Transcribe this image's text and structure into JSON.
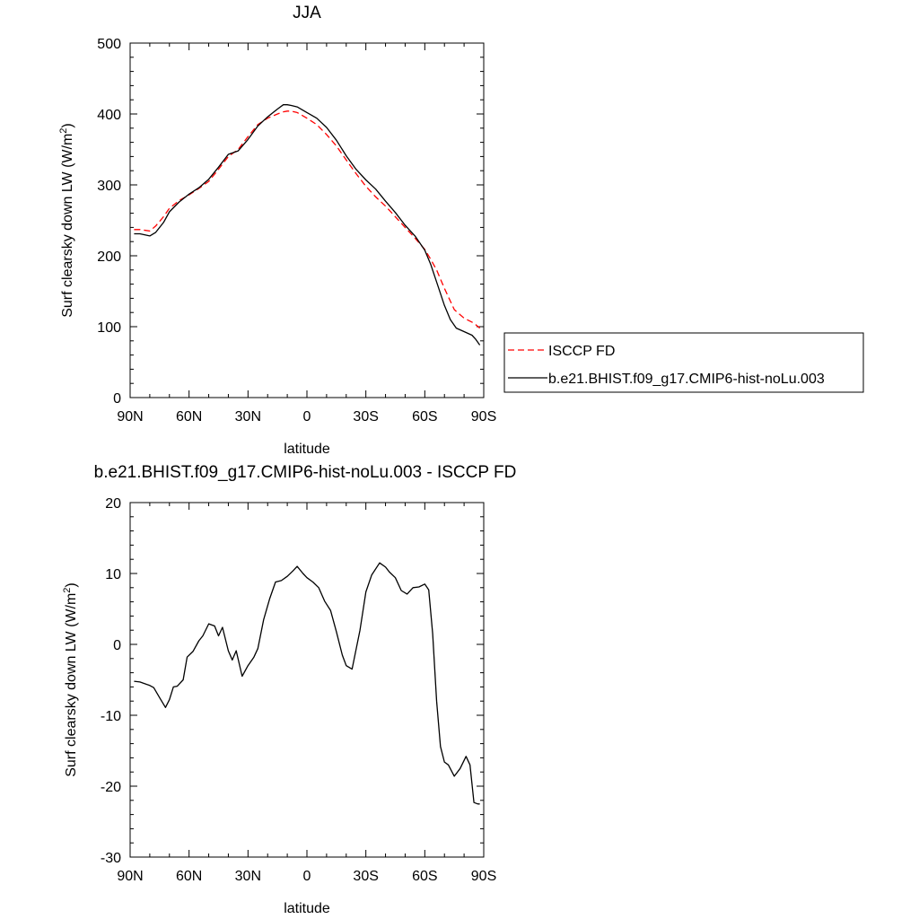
{
  "chart_data": [
    {
      "type": "line",
      "title": "JJA",
      "xlabel": "latitude",
      "ylabel": "Surf clearsky down LW (W/m",
      "ylabel_sup": "2",
      "ylabel_end": ")",
      "xlim": [
        90,
        -90
      ],
      "ylim": [
        0,
        500
      ],
      "xticks": [
        90,
        60,
        30,
        0,
        -30,
        -60,
        -90
      ],
      "xtick_labels": [
        "90N",
        "60N",
        "30N",
        "0",
        "30S",
        "60S",
        "90S"
      ],
      "yticks": [
        0,
        100,
        200,
        300,
        400,
        500
      ],
      "ytick_labels": [
        "0",
        "100",
        "200",
        "300",
        "400",
        "500"
      ],
      "legend_position": "outside-right",
      "series": [
        {
          "name": "ISCCP FD",
          "color": "#ff0000",
          "style": "dashed",
          "x": [
            88,
            85,
            80,
            77,
            73,
            70,
            65,
            60,
            55,
            50,
            45,
            40,
            35,
            30,
            25,
            20,
            15,
            12,
            10,
            8,
            5,
            0,
            -5,
            -10,
            -15,
            -20,
            -25,
            -30,
            -35,
            -40,
            -45,
            -50,
            -55,
            -60,
            -63,
            -66,
            -70,
            -75,
            -80,
            -85,
            -88
          ],
          "values": [
            237,
            237,
            235,
            242,
            255,
            267,
            278,
            286,
            295,
            305,
            322,
            340,
            350,
            368,
            385,
            394,
            400,
            403,
            404,
            404,
            402,
            394,
            385,
            371,
            355,
            335,
            316,
            298,
            283,
            270,
            255,
            240,
            225,
            209,
            195,
            180,
            154,
            124,
            112,
            105,
            98
          ]
        },
        {
          "name": "b.e21.BHIST.f09_g17.CMIP6-hist-noLu.003",
          "color": "#000000",
          "style": "solid",
          "x": [
            88,
            85,
            80,
            77,
            73,
            70,
            65,
            60,
            55,
            50,
            45,
            40,
            35,
            30,
            25,
            20,
            15,
            12,
            10,
            8,
            5,
            0,
            -5,
            -10,
            -15,
            -20,
            -25,
            -30,
            -35,
            -40,
            -45,
            -50,
            -55,
            -60,
            -63,
            -66,
            -70,
            -73,
            -76,
            -80,
            -84,
            -86,
            -88
          ],
          "values": [
            231,
            231,
            228,
            233,
            247,
            262,
            276,
            287,
            296,
            308,
            325,
            343,
            348,
            364,
            383,
            396,
            407,
            413,
            413,
            412,
            410,
            402,
            394,
            381,
            363,
            341,
            322,
            307,
            294,
            277,
            261,
            243,
            228,
            208,
            188,
            163,
            130,
            110,
            98,
            93,
            88,
            82,
            74
          ]
        }
      ]
    },
    {
      "type": "line",
      "title": "b.e21.BHIST.f09_g17.CMIP6-hist-noLu.003 - ISCCP FD",
      "xlabel": "latitude",
      "ylabel": "Surf clearsky down LW (W/m",
      "ylabel_sup": "2",
      "ylabel_end": ")",
      "xlim": [
        90,
        -90
      ],
      "ylim": [
        -30,
        20
      ],
      "xticks": [
        90,
        60,
        30,
        0,
        -30,
        -60,
        -90
      ],
      "xtick_labels": [
        "90N",
        "60N",
        "30N",
        "0",
        "30S",
        "60S",
        "90S"
      ],
      "yticks": [
        -30,
        -20,
        -10,
        0,
        10,
        20
      ],
      "ytick_labels": [
        "-30",
        "-20",
        "-10",
        "0",
        "10",
        "20"
      ],
      "series": [
        {
          "color": "#000000",
          "style": "solid",
          "x": [
            88,
            85,
            80,
            78,
            75,
            72,
            70,
            68,
            66,
            63,
            61,
            58,
            55,
            53,
            50,
            47,
            45,
            43,
            40,
            38,
            36,
            33,
            30,
            27,
            25,
            22,
            19,
            16,
            13,
            10,
            7,
            5,
            2,
            0,
            -3,
            -6,
            -9,
            -12,
            -15,
            -18,
            -20,
            -23,
            -27,
            -30,
            -33,
            -37,
            -40,
            -42,
            -45,
            -48,
            -51,
            -54,
            -57,
            -60,
            -62,
            -64,
            -66,
            -68,
            -70,
            -72,
            -75,
            -78,
            -81,
            -83,
            -85,
            -87,
            -88
          ],
          "values": [
            -5.2,
            -5.3,
            -5.8,
            -6.1,
            -7.5,
            -8.9,
            -7.8,
            -6.0,
            -5.9,
            -5.0,
            -1.8,
            -1.0,
            0.5,
            1.2,
            2.9,
            2.6,
            1.2,
            2.4,
            -0.9,
            -2.2,
            -0.9,
            -4.5,
            -3.0,
            -1.8,
            -0.6,
            3.5,
            6.4,
            8.8,
            9.0,
            9.6,
            10.4,
            11.0,
            10.0,
            9.4,
            8.8,
            8.0,
            6.1,
            4.8,
            1.8,
            -1.5,
            -3.0,
            -3.5,
            2.0,
            7.4,
            9.8,
            11.5,
            10.9,
            10.2,
            9.4,
            7.6,
            7.1,
            8.0,
            8.1,
            8.5,
            7.7,
            1.5,
            -8.0,
            -14.4,
            -16.6,
            -17.0,
            -18.6,
            -17.5,
            -15.8,
            -17.0,
            -22.3,
            -22.5,
            -22.5
          ]
        }
      ]
    }
  ]
}
